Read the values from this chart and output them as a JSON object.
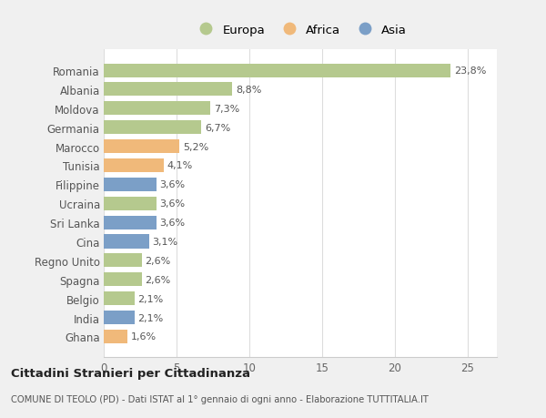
{
  "countries": [
    "Romania",
    "Albania",
    "Moldova",
    "Germania",
    "Marocco",
    "Tunisia",
    "Filippine",
    "Ucraina",
    "Sri Lanka",
    "Cina",
    "Regno Unito",
    "Spagna",
    "Belgio",
    "India",
    "Ghana"
  ],
  "values": [
    23.8,
    8.8,
    7.3,
    6.7,
    5.2,
    4.1,
    3.6,
    3.6,
    3.6,
    3.1,
    2.6,
    2.6,
    2.1,
    2.1,
    1.6
  ],
  "labels": [
    "23,8%",
    "8,8%",
    "7,3%",
    "6,7%",
    "5,2%",
    "4,1%",
    "3,6%",
    "3,6%",
    "3,6%",
    "3,1%",
    "2,6%",
    "2,6%",
    "2,1%",
    "2,1%",
    "1,6%"
  ],
  "regions": [
    "Europa",
    "Europa",
    "Europa",
    "Europa",
    "Africa",
    "Africa",
    "Asia",
    "Europa",
    "Asia",
    "Asia",
    "Europa",
    "Europa",
    "Europa",
    "Asia",
    "Africa"
  ],
  "colors": {
    "Europa": "#b5c98e",
    "Africa": "#f0b97a",
    "Asia": "#7b9fc7"
  },
  "legend_labels": [
    "Europa",
    "Africa",
    "Asia"
  ],
  "title1": "Cittadini Stranieri per Cittadinanza",
  "title2": "COMUNE DI TEOLO (PD) - Dati ISTAT al 1° gennaio di ogni anno - Elaborazione TUTTITALIA.IT",
  "xlim": [
    0,
    27
  ],
  "xticks": [
    0,
    5,
    10,
    15,
    20,
    25
  ],
  "figure_bg": "#f0f0f0",
  "plot_bg": "#ffffff",
  "grid_color": "#dddddd"
}
